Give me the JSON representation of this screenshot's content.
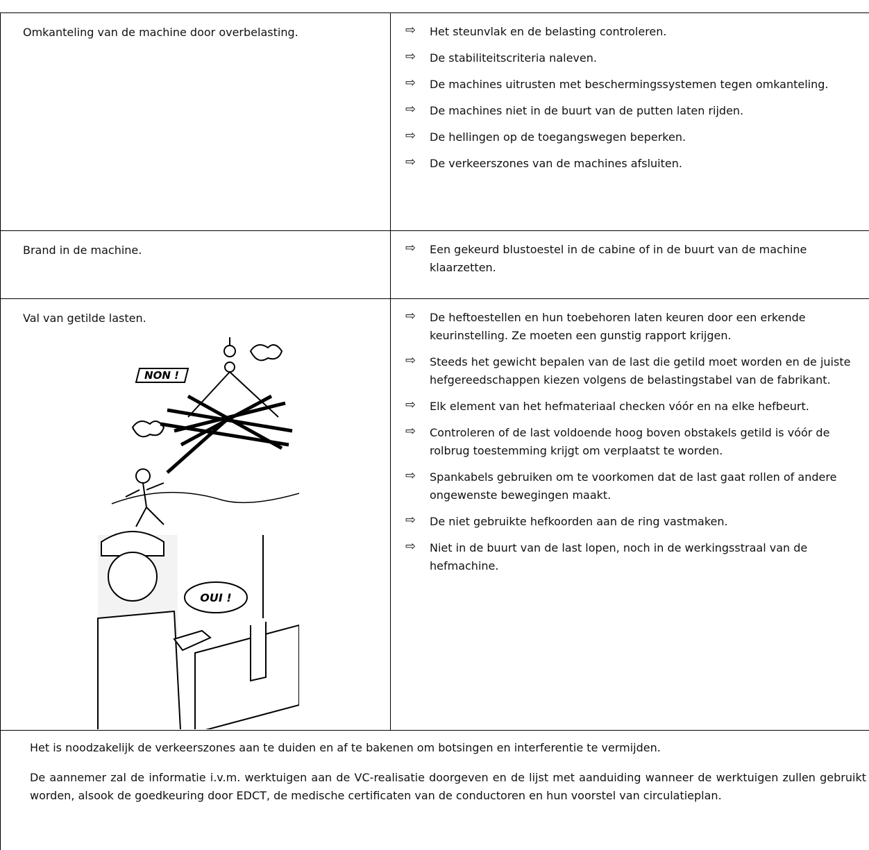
{
  "table": {
    "rows": [
      {
        "hazard": "Omkanteling van de machine door overbelasting.",
        "measures": [
          "Het steunvlak en de belasting controleren.",
          "De stabiliteitscriteria naleven.",
          "De machines uitrusten met beschermingssystemen tegen omkanteling.",
          "De machines niet in de buurt van de putten laten rijden.",
          "De hellingen op de toegangswegen beperken.",
          "De verkeerszones van de machines afsluiten."
        ]
      },
      {
        "hazard": "Brand in de machine.",
        "measures": [
          "Een gekeurd blustoestel in de cabine of in de buurt van de machine klaarzetten."
        ]
      },
      {
        "hazard": "Val van getilde lasten.",
        "measures": [
          "De heftoestellen en hun toebehoren laten keuren door een erkende keurinstelling. Ze moeten een gunstig rapport krijgen.",
          "Steeds het gewicht bepalen van de last die getild moet worden en de juiste hefgereedschappen kiezen volgens de belastingstabel van de fabrikant.",
          "Elk element van het hefmateriaal checken vóór en na elke hefbeurt.",
          "Controleren of de last voldoende hoog boven obstakels getild is vóór de rolbrug toestemming krijgt om verplaatst te worden.",
          "Spankabels gebruiken om te voorkomen dat de last gaat rollen of andere ongewenste bewegingen maakt.",
          "De niet gebruikte hefkoorden aan de ring vastmaken.",
          "Niet in de buurt van de last lopen, noch in de werkingsstraal van de hefmachine."
        ]
      }
    ]
  },
  "illustration": {
    "no_label": "NON !",
    "yes_label": "OUI !"
  },
  "footer": {
    "paragraphs": [
      "Het is noodzakelijk de verkeerszones aan te duiden en af te bakenen om botsingen en interferentie te vermijden.",
      "De aannemer zal de informatie  i.v.m. werktuigen aan de VC-realisatie doorgeven en de lijst met aanduiding wanneer de werktuigen zullen gebruikt worden, alsook de goedkeuring door EDCT, de medische certificaten van de conductoren en hun voorstel van circulatieplan."
    ]
  }
}
